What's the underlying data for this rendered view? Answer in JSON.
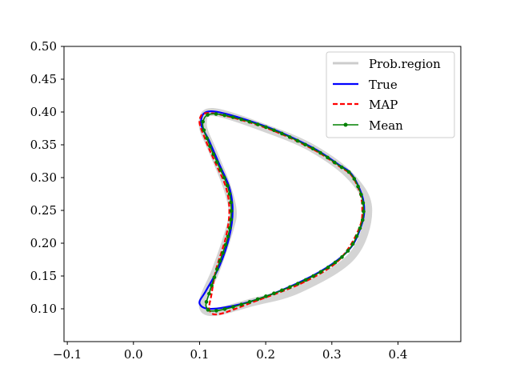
{
  "chart_data": {
    "type": "line",
    "title": "",
    "xlabel": "",
    "ylabel": "",
    "xlim": [
      -0.105,
      0.495
    ],
    "ylim": [
      0.05,
      0.5
    ],
    "x_ticks": [
      -0.1,
      0.0,
      0.1,
      0.2,
      0.3,
      0.4
    ],
    "x_tick_labels": [
      "−0.1",
      "0.0",
      "0.1",
      "0.2",
      "0.3",
      "0.4"
    ],
    "y_ticks": [
      0.1,
      0.15,
      0.2,
      0.25,
      0.3,
      0.35,
      0.4,
      0.45,
      0.5
    ],
    "y_tick_labels": [
      "0.10",
      "0.15",
      "0.20",
      "0.25",
      "0.30",
      "0.35",
      "0.40",
      "0.45",
      "0.50"
    ],
    "grid": false,
    "legend_position": "top-right",
    "series": [
      {
        "name": "Prob.region",
        "style": "band",
        "color": "#cccccc",
        "points": [
          [
            0.12,
            0.4
          ],
          [
            0.2,
            0.375
          ],
          [
            0.27,
            0.345
          ],
          [
            0.33,
            0.3
          ],
          [
            0.355,
            0.25
          ],
          [
            0.33,
            0.18
          ],
          [
            0.25,
            0.13
          ],
          [
            0.18,
            0.11
          ],
          [
            0.12,
            0.095
          ],
          [
            0.105,
            0.11
          ],
          [
            0.125,
            0.16
          ],
          [
            0.145,
            0.22
          ],
          [
            0.15,
            0.25
          ],
          [
            0.14,
            0.29
          ],
          [
            0.12,
            0.34
          ],
          [
            0.105,
            0.38
          ],
          [
            0.12,
            0.4
          ]
        ]
      },
      {
        "name": "True",
        "style": "solid",
        "color": "#0000ff",
        "points": [
          [
            0.12,
            0.401
          ],
          [
            0.2,
            0.378
          ],
          [
            0.27,
            0.346
          ],
          [
            0.31,
            0.32
          ],
          [
            0.33,
            0.305
          ],
          [
            0.345,
            0.275
          ],
          [
            0.349,
            0.25
          ],
          [
            0.345,
            0.228
          ],
          [
            0.33,
            0.195
          ],
          [
            0.3,
            0.168
          ],
          [
            0.25,
            0.14
          ],
          [
            0.18,
            0.112
          ],
          [
            0.12,
            0.1
          ],
          [
            0.1,
            0.108
          ],
          [
            0.11,
            0.128
          ],
          [
            0.13,
            0.165
          ],
          [
            0.145,
            0.21
          ],
          [
            0.15,
            0.25
          ],
          [
            0.145,
            0.285
          ],
          [
            0.13,
            0.32
          ],
          [
            0.115,
            0.355
          ],
          [
            0.102,
            0.385
          ],
          [
            0.12,
            0.401
          ]
        ]
      },
      {
        "name": "MAP",
        "style": "dashed",
        "color": "#ff0000",
        "points": [
          [
            0.12,
            0.398
          ],
          [
            0.2,
            0.376
          ],
          [
            0.27,
            0.344
          ],
          [
            0.31,
            0.318
          ],
          [
            0.33,
            0.303
          ],
          [
            0.343,
            0.275
          ],
          [
            0.346,
            0.25
          ],
          [
            0.343,
            0.227
          ],
          [
            0.325,
            0.192
          ],
          [
            0.3,
            0.165
          ],
          [
            0.25,
            0.137
          ],
          [
            0.18,
            0.11
          ],
          [
            0.13,
            0.092
          ],
          [
            0.115,
            0.098
          ],
          [
            0.118,
            0.122
          ],
          [
            0.125,
            0.16
          ],
          [
            0.14,
            0.21
          ],
          [
            0.145,
            0.25
          ],
          [
            0.14,
            0.285
          ],
          [
            0.125,
            0.32
          ],
          [
            0.11,
            0.355
          ],
          [
            0.1,
            0.388
          ],
          [
            0.12,
            0.398
          ]
        ]
      },
      {
        "name": "Mean",
        "style": "solid-markers",
        "color": "#008000",
        "points": [
          [
            0.125,
            0.397
          ],
          [
            0.2,
            0.377
          ],
          [
            0.27,
            0.345
          ],
          [
            0.31,
            0.319
          ],
          [
            0.33,
            0.304
          ],
          [
            0.344,
            0.275
          ],
          [
            0.348,
            0.25
          ],
          [
            0.344,
            0.227
          ],
          [
            0.328,
            0.193
          ],
          [
            0.3,
            0.167
          ],
          [
            0.25,
            0.139
          ],
          [
            0.18,
            0.112
          ],
          [
            0.125,
            0.097
          ],
          [
            0.11,
            0.103
          ],
          [
            0.115,
            0.125
          ],
          [
            0.127,
            0.162
          ],
          [
            0.143,
            0.21
          ],
          [
            0.148,
            0.25
          ],
          [
            0.143,
            0.285
          ],
          [
            0.128,
            0.32
          ],
          [
            0.113,
            0.355
          ],
          [
            0.105,
            0.385
          ],
          [
            0.125,
            0.397
          ]
        ]
      }
    ]
  }
}
